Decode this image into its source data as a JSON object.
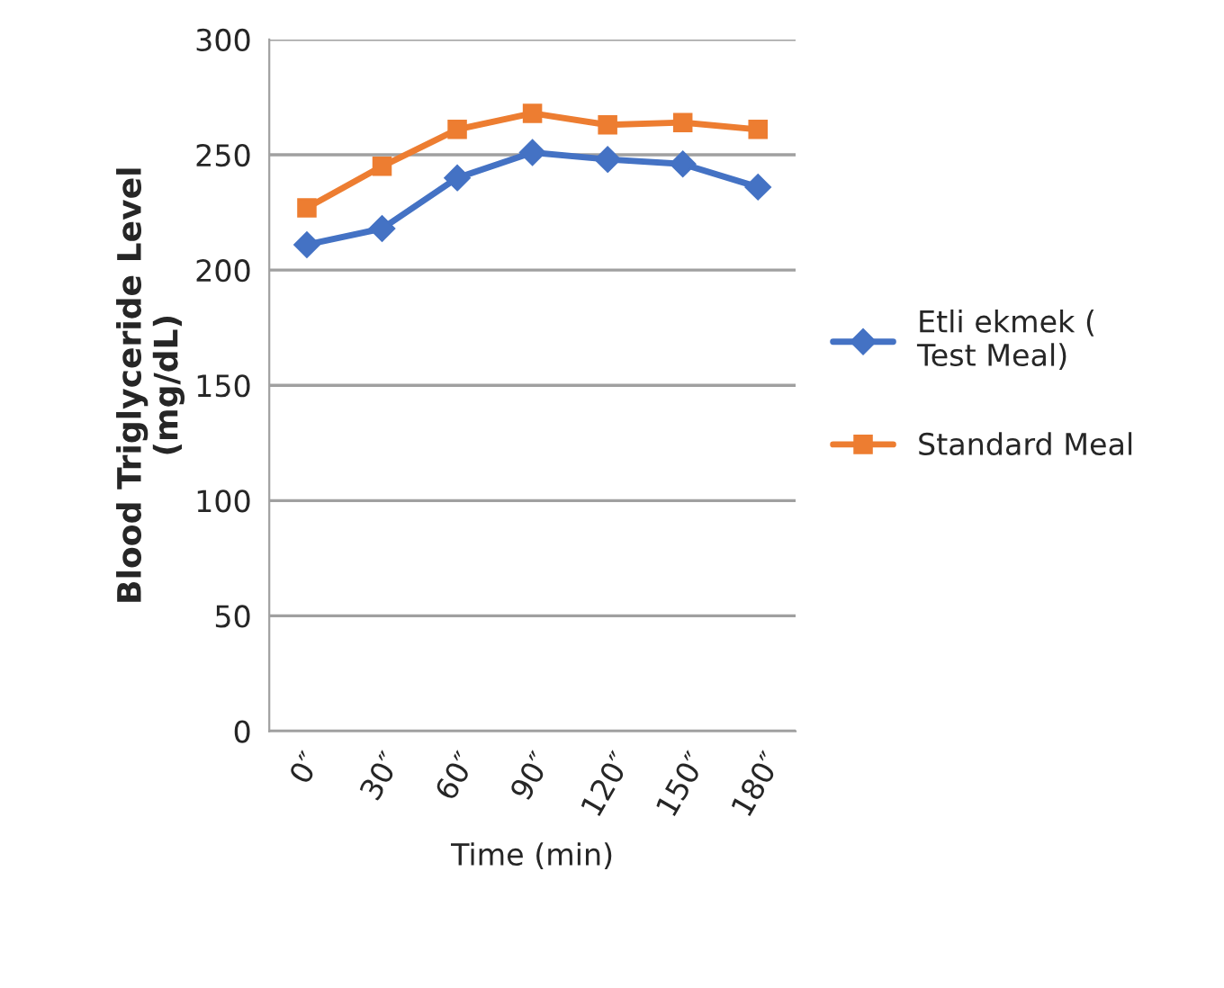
{
  "chart_data": {
    "type": "line",
    "xlabel": "Time (min)",
    "ylabel": "Blood Triglyceride Level\n(mg/dL)",
    "categories": [
      "0″",
      "30″",
      "60″",
      "90″",
      "120″",
      "150″",
      "180″"
    ],
    "series": [
      {
        "name": "Etli ekmek (Test Meal)",
        "color": "#4472c4",
        "marker": "diamond",
        "values": [
          211,
          218,
          240,
          251,
          248,
          246,
          236
        ]
      },
      {
        "name": "Standard Meal",
        "color": "#ed7d31",
        "marker": "square",
        "values": [
          227,
          245,
          261,
          268,
          263,
          264,
          261
        ]
      }
    ],
    "ylim": [
      0,
      300
    ],
    "yticks": [
      0,
      50,
      100,
      150,
      200,
      250,
      300
    ],
    "grid": "y",
    "legend": "right"
  }
}
